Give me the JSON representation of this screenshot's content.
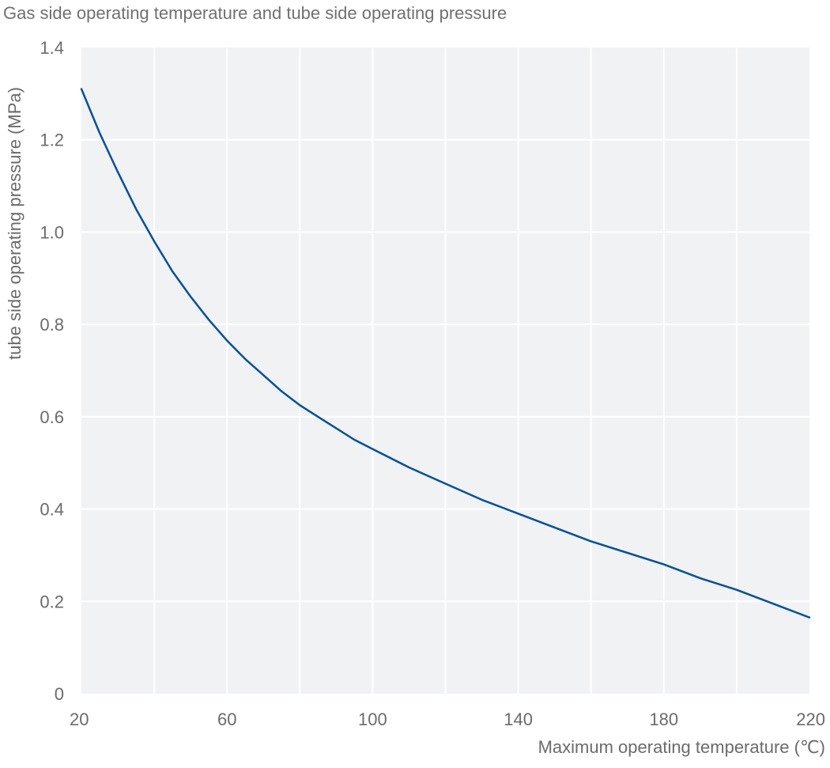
{
  "chart_data": {
    "type": "line",
    "title": "Gas side operating temperature and tube side operating pressure",
    "xlabel": "Maximum operating temperature (℃)",
    "ylabel": "tube side operating pressure (MPa)",
    "xlim": [
      20,
      220
    ],
    "ylim": [
      0,
      1.4
    ],
    "x_ticks": [
      20,
      60,
      100,
      140,
      180,
      220
    ],
    "x_tick_labels": [
      "20",
      "60",
      "100",
      "140",
      "180",
      "220"
    ],
    "y_ticks": [
      0,
      0.2,
      0.4,
      0.6,
      0.8,
      1.0,
      1.2,
      1.4
    ],
    "y_tick_labels": [
      "0",
      "0.2",
      "0.4",
      "0.6",
      "0.8",
      "1.0",
      "1.2",
      "1.4"
    ],
    "x_gridlines": [
      40,
      60,
      80,
      100,
      120,
      140,
      160,
      180,
      200
    ],
    "y_gridlines": [
      0.2,
      0.4,
      0.6,
      0.8,
      1.0,
      1.2
    ],
    "grid": true,
    "legend": "none",
    "colors": {
      "plot_background": "#f1f2f4",
      "grid": "#ffffff",
      "line": "#0050a0",
      "text": "#6b6b6b"
    },
    "series": [
      {
        "x": [
          20,
          25,
          30,
          35,
          40,
          45,
          50,
          55,
          60,
          65,
          70,
          75,
          80,
          85,
          90,
          95,
          100,
          110,
          120,
          130,
          140,
          150,
          160,
          170,
          180,
          190,
          200,
          210,
          220
        ],
        "values": [
          1.31,
          1.215,
          1.13,
          1.05,
          0.98,
          0.915,
          0.86,
          0.81,
          0.765,
          0.725,
          0.69,
          0.655,
          0.625,
          0.6,
          0.575,
          0.55,
          0.53,
          0.49,
          0.455,
          0.42,
          0.39,
          0.36,
          0.33,
          0.305,
          0.28,
          0.25,
          0.225,
          0.195,
          0.165
        ]
      }
    ]
  }
}
